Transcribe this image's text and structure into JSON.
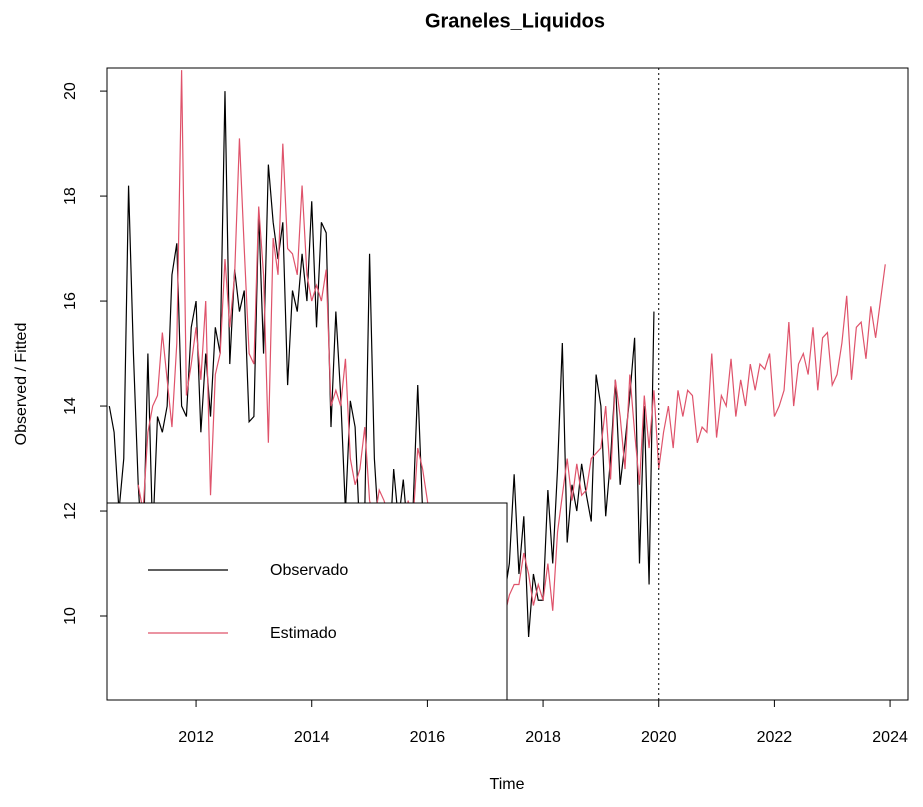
{
  "chart_data": {
    "type": "line",
    "title": "Graneles_Liquidos",
    "x_label": "Time",
    "y_label": "Observed / Fitted",
    "x": [
      2010.5,
      2010.583,
      2010.667,
      2010.75,
      2010.833,
      2010.917,
      2011,
      2011.083,
      2011.167,
      2011.25,
      2011.333,
      2011.417,
      2011.5,
      2011.583,
      2011.667,
      2011.75,
      2011.833,
      2011.917,
      2012,
      2012.083,
      2012.167,
      2012.25,
      2012.333,
      2012.417,
      2012.5,
      2012.583,
      2012.667,
      2012.75,
      2012.833,
      2012.917,
      2013,
      2013.083,
      2013.167,
      2013.25,
      2013.333,
      2013.417,
      2013.5,
      2013.583,
      2013.667,
      2013.75,
      2013.833,
      2013.917,
      2014,
      2014.083,
      2014.167,
      2014.25,
      2014.333,
      2014.417,
      2014.5,
      2014.583,
      2014.667,
      2014.75,
      2014.833,
      2014.917,
      2015,
      2015.083,
      2015.167,
      2015.25,
      2015.333,
      2015.417,
      2015.5,
      2015.583,
      2015.667,
      2015.75,
      2015.833,
      2015.917,
      2016,
      2016.083,
      2016.167,
      2016.25,
      2016.333,
      2016.417,
      2016.5,
      2016.583,
      2016.667,
      2016.75,
      2016.833,
      2016.917,
      2017,
      2017.083,
      2017.167,
      2017.25,
      2017.333,
      2017.417,
      2017.5,
      2017.583,
      2017.667,
      2017.75,
      2017.833,
      2017.917,
      2018,
      2018.083,
      2018.167,
      2018.25,
      2018.333,
      2018.417,
      2018.5,
      2018.583,
      2018.667,
      2018.75,
      2018.833,
      2018.917,
      2019,
      2019.083,
      2019.167,
      2019.25,
      2019.333,
      2019.417,
      2019.5,
      2019.583,
      2019.667,
      2019.75,
      2019.833,
      2019.917,
      2020,
      2020.083,
      2020.167,
      2020.25,
      2020.333,
      2020.417,
      2020.5,
      2020.583,
      2020.667,
      2020.75,
      2020.833,
      2020.917,
      2021,
      2021.083,
      2021.167,
      2021.25,
      2021.333,
      2021.417,
      2021.5,
      2021.583,
      2021.667,
      2021.75,
      2021.833,
      2021.917,
      2022,
      2022.083,
      2022.167,
      2022.25,
      2022.333,
      2022.417,
      2022.5,
      2022.583,
      2022.667,
      2022.75,
      2022.833,
      2022.917,
      2023,
      2023.083,
      2023.167,
      2023.25,
      2023.333,
      2023.417,
      2023.5,
      2023.583,
      2023.667,
      2023.75,
      2023.833,
      2023.917
    ],
    "series": [
      {
        "name": "Observado",
        "color": "#000000",
        "values": [
          14.0,
          13.5,
          12.0,
          13.0,
          18.2,
          15.0,
          12.5,
          11.0,
          15.0,
          11.5,
          13.8,
          13.5,
          14.0,
          16.5,
          17.1,
          14.0,
          13.8,
          15.5,
          16.0,
          13.5,
          15.0,
          13.8,
          15.5,
          15.0,
          20.0,
          14.8,
          16.6,
          15.8,
          16.2,
          13.7,
          13.8,
          17.7,
          15.0,
          18.6,
          17.5,
          16.8,
          17.5,
          14.4,
          16.2,
          15.8,
          16.9,
          16.0,
          17.9,
          15.5,
          17.5,
          17.3,
          13.6,
          15.8,
          14.2,
          12.0,
          14.1,
          13.6,
          11.5,
          12.0,
          16.9,
          13.0,
          11.5,
          12.0,
          11.0,
          12.8,
          11.8,
          12.6,
          11.5,
          12.0,
          14.4,
          12.0,
          11.5,
          11.2,
          10.5,
          11.0,
          10.0,
          10.5,
          9.8,
          10.2,
          10.8,
          10.0,
          9.5,
          10.3,
          10.0,
          9.8,
          10.5,
          9.5,
          10.4,
          11.0,
          12.7,
          10.8,
          11.9,
          9.6,
          10.8,
          10.3,
          10.3,
          12.4,
          11.0,
          12.8,
          15.2,
          11.4,
          12.5,
          12.0,
          12.9,
          12.3,
          11.8,
          14.6,
          14.0,
          11.9,
          13.0,
          14.5,
          12.5,
          13.3,
          14.2,
          15.3,
          11.0,
          14.0,
          10.6,
          15.8,
          null,
          null,
          null,
          null,
          null,
          null,
          null,
          null,
          null,
          null,
          null,
          null,
          null,
          null,
          null,
          null,
          null,
          null,
          null,
          null,
          null,
          null,
          null,
          null,
          null,
          null,
          null,
          null,
          null,
          null,
          null,
          null,
          null,
          null,
          null,
          null,
          null,
          null,
          null,
          null,
          null,
          null,
          null,
          null,
          null,
          null,
          null,
          null
        ]
      },
      {
        "name": "Estimado",
        "color": "#DF536B",
        "values": [
          null,
          null,
          null,
          null,
          null,
          null,
          12.5,
          12.0,
          13.5,
          14.0,
          14.2,
          15.4,
          14.5,
          13.6,
          15.2,
          20.4,
          14.2,
          14.8,
          15.5,
          14.5,
          16.0,
          12.3,
          14.6,
          15.0,
          16.8,
          15.5,
          16.5,
          19.1,
          17.0,
          15.0,
          14.8,
          17.8,
          16.5,
          13.3,
          17.2,
          16.5,
          19.0,
          17.0,
          16.9,
          16.5,
          18.2,
          16.5,
          16.0,
          16.3,
          16.0,
          16.6,
          14.0,
          14.3,
          14.0,
          14.9,
          13.0,
          12.5,
          12.8,
          13.6,
          12.2,
          11.8,
          12.4,
          12.2,
          11.9,
          11.7,
          12.0,
          11.5,
          12.2,
          11.8,
          13.2,
          12.8,
          12.2,
          11.5,
          11.0,
          10.8,
          10.5,
          10.2,
          10.8,
          10.0,
          10.4,
          9.8,
          10.2,
          9.6,
          10.0,
          9.6,
          9.3,
          9.6,
          10.0,
          10.4,
          10.6,
          10.6,
          11.2,
          10.8,
          10.2,
          10.6,
          10.3,
          11.0,
          10.1,
          11.6,
          12.3,
          13.0,
          12.2,
          12.9,
          12.3,
          12.4,
          13.0,
          13.1,
          13.2,
          14.0,
          12.6,
          14.5,
          13.8,
          12.8,
          14.6,
          13.5,
          12.5,
          14.2,
          13.2,
          14.3,
          12.8,
          13.5,
          14.0,
          13.2,
          14.3,
          13.8,
          14.3,
          14.2,
          13.3,
          13.6,
          13.5,
          15.0,
          13.4,
          14.2,
          14.0,
          14.9,
          13.8,
          14.5,
          14.0,
          14.8,
          14.3,
          14.8,
          14.7,
          15.0,
          13.8,
          14.0,
          14.3,
          15.6,
          14.0,
          14.8,
          15.0,
          14.6,
          15.5,
          14.3,
          15.3,
          15.4,
          14.4,
          14.6,
          15.2,
          16.1,
          14.5,
          15.5,
          15.6,
          14.9,
          15.9,
          15.3,
          16.0,
          16.7
        ]
      }
    ],
    "xlim": [
      2010.46,
      2024.31
    ],
    "ylim": [
      8.4,
      20.44
    ],
    "xticks": [
      2012,
      2014,
      2016,
      2018,
      2020,
      2022,
      2024
    ],
    "yticks": [
      10,
      12,
      14,
      16,
      18,
      20
    ],
    "vline": 2020,
    "legend": "bottom-left"
  }
}
